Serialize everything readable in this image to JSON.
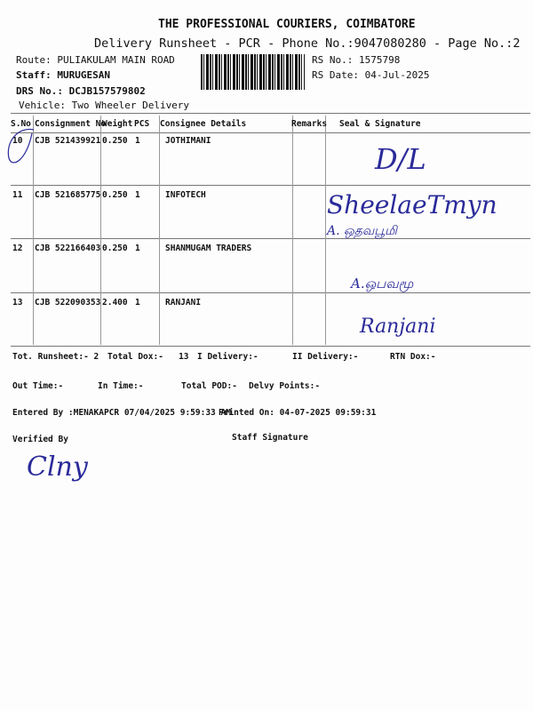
{
  "header": {
    "company": "THE PROFESSIONAL COURIERS, COIMBATORE",
    "subtitle": "Delivery Runsheet - PCR - Phone No.:9047080280 - Page No.:2",
    "route": "Route: PULIAKULAM MAIN ROAD",
    "staff": "Staff: MURUGESAN",
    "drs_no": "DRS No.: DCJB157579802",
    "vehicle": "Vehicle: Two Wheeler Delivery",
    "rs_no": "RS No.: 1575798",
    "rs_date": "RS Date: 04-Jul-2025"
  },
  "table": {
    "columns": [
      "S.No",
      "Consignment No",
      "Weight",
      "PCS",
      "Consignee Details",
      "Remarks",
      "Seal & Signature"
    ],
    "rows": [
      {
        "sno": "10",
        "consignment": "CJB 521439921",
        "weight": "0.250",
        "pcs": "1",
        "consignee": "JOTHIMANI",
        "remarks": "",
        "signature": "D/L"
      },
      {
        "sno": "11",
        "consignment": "CJB 521685775",
        "weight": "0.250",
        "pcs": "1",
        "consignee": "INFOTECH",
        "remarks": "",
        "signature": "SheelaeTmyn"
      },
      {
        "sno": "12",
        "consignment": "CJB 522166403",
        "weight": "0.250",
        "pcs": "1",
        "consignee": "SHANMUGAM TRADERS",
        "remarks": "",
        "signature": "A. ஒதவபூமி"
      },
      {
        "sno": "13",
        "consignment": "CJB 522090353",
        "weight": "2.400",
        "pcs": "1",
        "consignee": "RANJANI",
        "remarks": "",
        "signature": "Ranjani"
      }
    ]
  },
  "summary": {
    "tot_runsheet": "Tot. Runsheet:- 2",
    "total_dox": "Total Dox:-   13",
    "i_delivery": "I Delivery:-",
    "ii_delivery": "II Delivery:-",
    "rtn_dox": "RTN Dox:-",
    "out_time": "Out Time:-",
    "in_time": "In Time:-",
    "total_pod": "Total POD:-",
    "delvy_points": "Delvy Points:-",
    "entered_by": "Entered By :MENAKAPCR 07/04/2025 9:59:33 AM",
    "printed_on": "Printed On: 04-07-2025 09:59:31",
    "verified_by": "Verified By",
    "staff_signature": "Staff Signature"
  },
  "handwriting": {
    "extra_sign_row12": "A.ஒபவமூ",
    "verifier_initials": "Clny"
  },
  "colors": {
    "ink": "#2a2a9a",
    "print": "#111111"
  }
}
